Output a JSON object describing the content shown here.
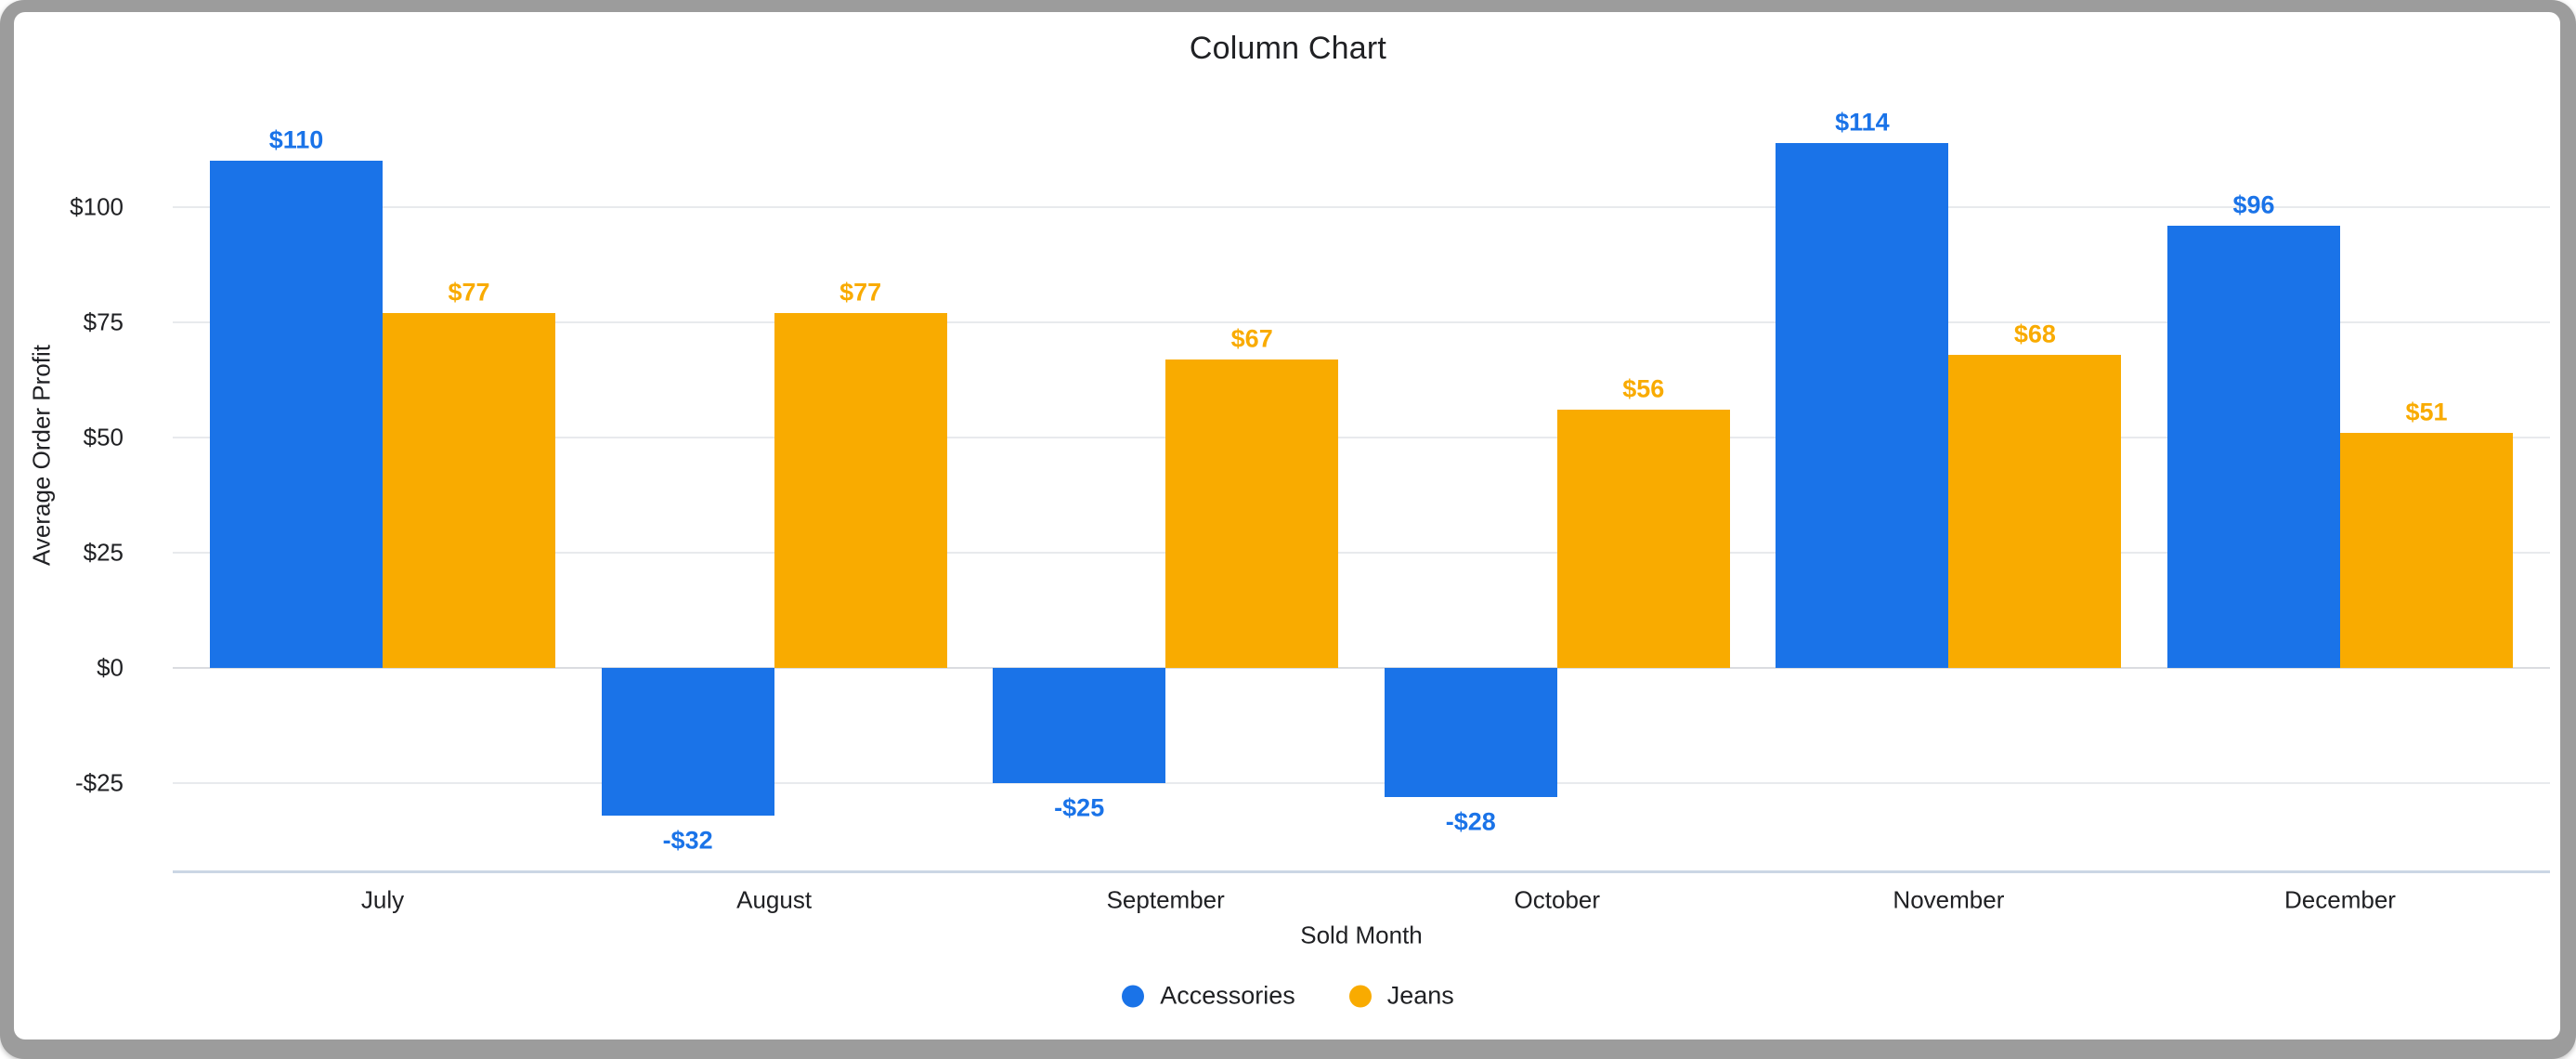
{
  "window": {
    "frame_color": "#9c9c9c",
    "background": "#ffffff"
  },
  "chart_data": {
    "type": "bar",
    "title": "Column Chart",
    "xlabel": "Sold Month",
    "ylabel": "Average Order Profit",
    "categories": [
      "July",
      "August",
      "September",
      "October",
      "November",
      "December"
    ],
    "series": [
      {
        "name": "Accessories",
        "color": "#1A73E8",
        "values": [
          110,
          -32,
          -25,
          -28,
          114,
          96
        ],
        "labels": [
          "$110",
          "-$32",
          "-$25",
          "-$28",
          "$114",
          "$96"
        ]
      },
      {
        "name": "Jeans",
        "color": "#F9AB00",
        "values": [
          77,
          77,
          67,
          56,
          68,
          51
        ],
        "labels": [
          "$77",
          "$77",
          "$67",
          "$56",
          "$68",
          "$51"
        ]
      }
    ],
    "y_ticks": [
      {
        "value": 100,
        "label": "$100"
      },
      {
        "value": 75,
        "label": "$75"
      },
      {
        "value": 50,
        "label": "$50"
      },
      {
        "value": 25,
        "label": "$25"
      },
      {
        "value": 0,
        "label": "$0"
      },
      {
        "value": -25,
        "label": "-$25"
      }
    ],
    "ylim": [
      -44,
      121
    ],
    "grid": true,
    "legend_position": "bottom",
    "colors": {
      "gridline": "#E8EAED",
      "zero_line": "#DADCE0",
      "axis_line": "#CBD6E4",
      "text": "#202124"
    }
  }
}
